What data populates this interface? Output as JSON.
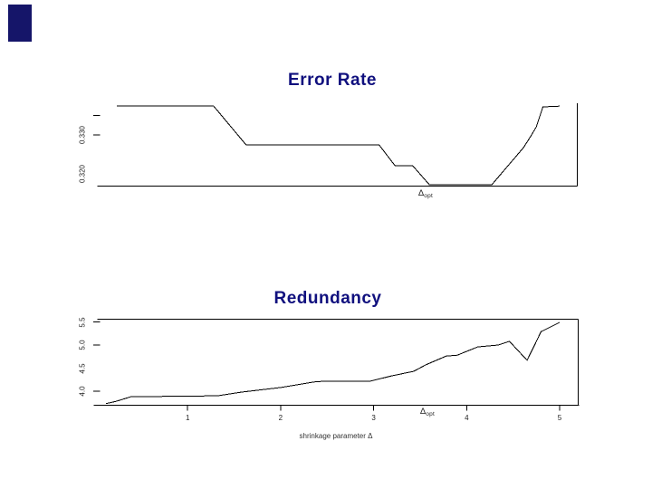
{
  "slide": {
    "background": "#ffffff",
    "corner_block_color": "#151569",
    "title_color": "#10107e",
    "plot_ink": "#000000",
    "label_ink": "#222222"
  },
  "chart_data": [
    {
      "type": "line",
      "title": "Error Rate",
      "xlabel": "",
      "ylabel": "",
      "grid": false,
      "legend": false,
      "frame_sides": [
        "bottom",
        "right"
      ],
      "x_range_estimated": [
        0.2,
        5.0
      ],
      "y_range_estimated": [
        0.317,
        0.338
      ],
      "y_ticks": [
        {
          "value": 0.335,
          "label": "",
          "has_tick": true
        },
        {
          "value": 0.33,
          "label": "0.330",
          "has_tick": true
        },
        {
          "value": 0.32,
          "label": "0.320",
          "has_tick": false
        }
      ],
      "x_ticks": [],
      "x_marker": {
        "symbol": "Δ",
        "subscript": "opt",
        "value": 3.55
      },
      "series": [
        {
          "name": "error rate vs shrinkage parameter",
          "points": [
            [
              0.24,
              0.3374
            ],
            [
              1.28,
              0.3374
            ],
            [
              1.63,
              0.3274
            ],
            [
              3.06,
              0.3274
            ],
            [
              3.23,
              0.3221
            ],
            [
              3.42,
              0.3221
            ],
            [
              3.6,
              0.3172
            ],
            [
              4.27,
              0.3172
            ],
            [
              4.61,
              0.3267
            ],
            [
              4.68,
              0.3293
            ],
            [
              4.75,
              0.3321
            ],
            [
              4.82,
              0.3372
            ],
            [
              5.0,
              0.3374
            ]
          ]
        }
      ]
    },
    {
      "type": "line",
      "title": "Redundancy",
      "xlabel": "shrinkage parameter Δ",
      "ylabel": "",
      "grid": false,
      "legend": false,
      "frame_sides": [
        "top",
        "bottom",
        "right"
      ],
      "x_range_estimated": [
        0.1,
        5.0
      ],
      "y_range_estimated": [
        3.7,
        5.5
      ],
      "y_ticks": [
        {
          "value": 5.5,
          "label": "5.5",
          "has_tick": true
        },
        {
          "value": 5.0,
          "label": "5.0",
          "has_tick": true
        },
        {
          "value": 4.5,
          "label": "4.5",
          "has_tick": false
        },
        {
          "value": 4.0,
          "label": "4.0",
          "has_tick": true
        }
      ],
      "x_ticks": [
        {
          "value": 1,
          "label": "1"
        },
        {
          "value": 2,
          "label": "2"
        },
        {
          "value": 3,
          "label": "3"
        },
        {
          "value": 4,
          "label": "4"
        },
        {
          "value": 5,
          "label": "5"
        }
      ],
      "x_marker": {
        "symbol": "Δ",
        "subscript": "opt",
        "value": 3.58
      },
      "series": [
        {
          "name": "redundancy vs shrinkage parameter",
          "points": [
            [
              0.12,
              3.73
            ],
            [
              0.23,
              3.78
            ],
            [
              0.39,
              3.88
            ],
            [
              1.32,
              3.9
            ],
            [
              1.58,
              3.98
            ],
            [
              2.0,
              4.08
            ],
            [
              2.36,
              4.2
            ],
            [
              2.49,
              4.22
            ],
            [
              2.97,
              4.22
            ],
            [
              3.19,
              4.33
            ],
            [
              3.43,
              4.43
            ],
            [
              3.56,
              4.57
            ],
            [
              3.78,
              4.76
            ],
            [
              3.9,
              4.78
            ],
            [
              4.12,
              4.96
            ],
            [
              4.34,
              5.0
            ],
            [
              4.46,
              5.08
            ],
            [
              4.65,
              4.67
            ],
            [
              4.76,
              5.12
            ],
            [
              4.8,
              5.29
            ],
            [
              4.9,
              5.39
            ],
            [
              5.0,
              5.49
            ]
          ]
        }
      ]
    }
  ]
}
